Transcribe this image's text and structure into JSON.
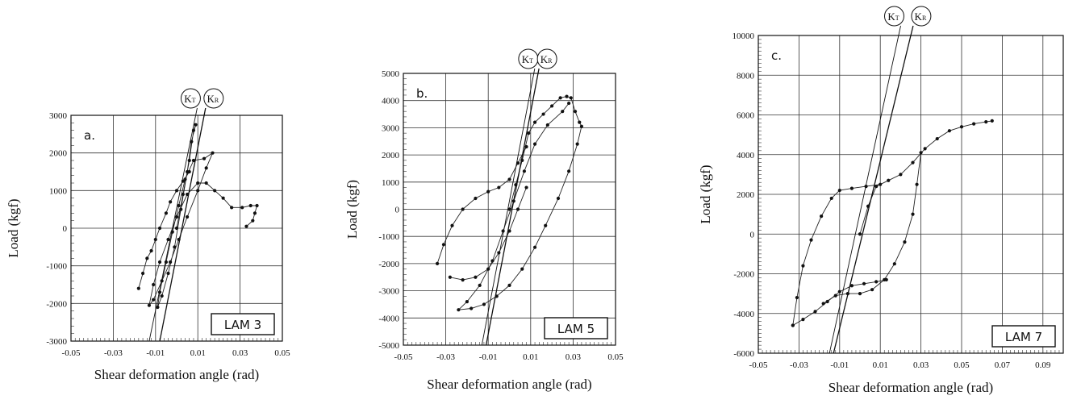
{
  "chart_data": [
    {
      "type": "scatter",
      "panel_label": "a.",
      "specimen": "LAM 3",
      "xlabel": "Shear deformation angle (rad)",
      "ylabel": "Load (kgf)",
      "xlim": [
        -0.05,
        0.05
      ],
      "ylim": [
        -3000,
        3000
      ],
      "xticks": [
        "-0.05",
        "-0.03",
        "-0.01",
        "0.01",
        "0.03",
        "0.05"
      ],
      "yticks": [
        "-3000",
        "-2000",
        "-1000",
        "0",
        "1000",
        "2000",
        "3000"
      ],
      "grid": true,
      "stiffness_labels": [
        {
          "main": "K",
          "sub": "T",
          "line": [
            [
              -0.013,
              -3000
            ],
            [
              0.009,
              3000
            ]
          ]
        },
        {
          "main": "K",
          "sub": "R",
          "line": [
            [
              -0.008,
              -3000
            ],
            [
              0.013,
              3000
            ]
          ]
        }
      ],
      "series": [
        {
          "points": [
            [
              0.0,
              0
            ],
            [
              0.003,
              900
            ],
            [
              0.006,
              1800
            ],
            [
              0.008,
              2600
            ],
            [
              0.009,
              2750
            ],
            [
              0.007,
              2300
            ],
            [
              0.005,
              1500
            ],
            [
              0.002,
              500
            ],
            [
              -0.001,
              -500
            ],
            [
              -0.004,
              -1200
            ],
            [
              -0.007,
              -1800
            ],
            [
              -0.009,
              -2100
            ],
            [
              -0.008,
              -1700
            ],
            [
              -0.005,
              -900
            ],
            [
              -0.002,
              -100
            ],
            [
              0.001,
              600
            ],
            [
              0.004,
              1300
            ],
            [
              0.008,
              1800
            ],
            [
              0.013,
              1850
            ],
            [
              0.017,
              2000
            ],
            [
              0.014,
              1600
            ],
            [
              0.01,
              1000
            ],
            [
              0.005,
              300
            ],
            [
              0.001,
              -300
            ],
            [
              -0.003,
              -900
            ],
            [
              -0.007,
              -1400
            ],
            [
              -0.011,
              -1900
            ],
            [
              -0.013,
              -2050
            ],
            [
              -0.011,
              -1500
            ],
            [
              -0.008,
              -900
            ],
            [
              -0.004,
              -300
            ],
            [
              0.0,
              300
            ],
            [
              0.005,
              900
            ],
            [
              0.01,
              1200
            ],
            [
              0.014,
              1200
            ],
            [
              0.018,
              1000
            ],
            [
              0.022,
              800
            ],
            [
              0.026,
              550
            ],
            [
              0.031,
              550
            ],
            [
              0.035,
              600
            ],
            [
              0.038,
              600
            ],
            [
              0.037,
              400
            ],
            [
              0.036,
              200
            ],
            [
              0.033,
              50
            ]
          ]
        },
        {
          "points": [
            [
              -0.018,
              -1600
            ],
            [
              -0.016,
              -1200
            ],
            [
              -0.014,
              -800
            ],
            [
              -0.012,
              -600
            ],
            [
              -0.01,
              -300
            ],
            [
              -0.008,
              0
            ],
            [
              -0.005,
              400
            ],
            [
              -0.003,
              700
            ],
            [
              0.0,
              1000
            ],
            [
              0.003,
              1250
            ],
            [
              0.006,
              1500
            ]
          ]
        }
      ]
    },
    {
      "type": "scatter",
      "panel_label": "b.",
      "specimen": "LAM 5",
      "xlabel": "Shear deformation angle (rad)",
      "ylabel": "Load (kgf)",
      "xlim": [
        -0.05,
        0.05
      ],
      "ylim": [
        -5000,
        5000
      ],
      "xticks": [
        "-0.05",
        "-0.03",
        "-0.01",
        "0.01",
        "0.03",
        "0.05"
      ],
      "yticks": [
        "-5000",
        "-4000",
        "-3000",
        "-2000",
        "-1000",
        "0",
        "1000",
        "2000",
        "3000",
        "4000",
        "5000"
      ],
      "grid": true,
      "stiffness_labels": [
        {
          "main": "K",
          "sub": "T",
          "line": [
            [
              -0.013,
              -5000
            ],
            [
              0.011,
              4800
            ]
          ]
        },
        {
          "main": "K",
          "sub": "R",
          "line": [
            [
              -0.011,
              -5000
            ],
            [
              0.013,
              4800
            ]
          ]
        }
      ],
      "series": [
        {
          "points": [
            [
              0.0,
              0
            ],
            [
              0.003,
              900
            ],
            [
              0.006,
              1800
            ],
            [
              0.009,
              2800
            ],
            [
              0.012,
              3200
            ],
            [
              0.016,
              3500
            ],
            [
              0.02,
              3800
            ],
            [
              0.024,
              4100
            ],
            [
              0.027,
              4150
            ],
            [
              0.029,
              4100
            ],
            [
              0.031,
              3600
            ],
            [
              0.033,
              3200
            ],
            [
              0.034,
              3050
            ],
            [
              0.032,
              2400
            ],
            [
              0.028,
              1400
            ],
            [
              0.023,
              400
            ],
            [
              0.017,
              -600
            ],
            [
              0.012,
              -1400
            ],
            [
              0.006,
              -2200
            ],
            [
              0.0,
              -2800
            ],
            [
              -0.006,
              -3200
            ],
            [
              -0.012,
              -3500
            ],
            [
              -0.018,
              -3650
            ],
            [
              -0.024,
              -3700
            ],
            [
              -0.02,
              -3400
            ],
            [
              -0.014,
              -2800
            ],
            [
              -0.008,
              -1900
            ],
            [
              -0.003,
              -800
            ],
            [
              0.002,
              300
            ],
            [
              0.007,
              1400
            ],
            [
              0.012,
              2400
            ],
            [
              0.018,
              3100
            ],
            [
              0.025,
              3600
            ],
            [
              0.028,
              3900
            ]
          ]
        },
        {
          "points": [
            [
              -0.034,
              -2000
            ],
            [
              -0.031,
              -1300
            ],
            [
              -0.027,
              -600
            ],
            [
              -0.022,
              0
            ],
            [
              -0.016,
              400
            ],
            [
              -0.01,
              650
            ],
            [
              -0.005,
              800
            ],
            [
              0.0,
              1100
            ],
            [
              0.004,
              1700
            ],
            [
              0.008,
              2300
            ]
          ]
        },
        {
          "points": [
            [
              -0.028,
              -2500
            ],
            [
              -0.022,
              -2600
            ],
            [
              -0.016,
              -2500
            ],
            [
              -0.01,
              -2200
            ],
            [
              -0.005,
              -1600
            ],
            [
              0.0,
              -800
            ],
            [
              0.004,
              0
            ],
            [
              0.008,
              800
            ]
          ]
        }
      ]
    },
    {
      "type": "scatter",
      "panel_label": "c.",
      "specimen": "LAM 7",
      "xlabel": "Shear deformation angle (rad)",
      "ylabel": "Load (kgf)",
      "xlim": [
        -0.05,
        0.1
      ],
      "ylim": [
        -6000,
        10000
      ],
      "xticks": [
        "-0.05",
        "-0.03",
        "-0.01",
        "0.01",
        "0.03",
        "0.05",
        "0.07",
        "0.09"
      ],
      "yticks": [
        "-6000",
        "-4000",
        "-2000",
        "0",
        "2000",
        "4000",
        "6000",
        "8000",
        "10000"
      ],
      "grid": true,
      "stiffness_labels": [
        {
          "main": "K",
          "sub": "T",
          "line": [
            [
              -0.015,
              -6000
            ],
            [
              0.019,
              10000
            ]
          ]
        },
        {
          "main": "K",
          "sub": "R",
          "line": [
            [
              -0.013,
              -6000
            ],
            [
              0.025,
              10000
            ]
          ]
        }
      ],
      "series": [
        {
          "points": [
            [
              0.0,
              0
            ],
            [
              0.004,
              1400
            ],
            [
              0.008,
              2400
            ],
            [
              0.014,
              2700
            ],
            [
              0.02,
              3000
            ],
            [
              0.026,
              3600
            ],
            [
              0.032,
              4300
            ],
            [
              0.038,
              4800
            ],
            [
              0.044,
              5200
            ],
            [
              0.05,
              5400
            ],
            [
              0.056,
              5550
            ],
            [
              0.062,
              5650
            ],
            [
              0.065,
              5700
            ]
          ]
        },
        {
          "points": [
            [
              -0.033,
              -4600
            ],
            [
              -0.028,
              -4300
            ],
            [
              -0.022,
              -3900
            ],
            [
              -0.016,
              -3400
            ],
            [
              -0.01,
              -2900
            ],
            [
              -0.004,
              -2600
            ],
            [
              0.002,
              -2500
            ],
            [
              0.008,
              -2400
            ],
            [
              0.013,
              -2300
            ]
          ]
        },
        {
          "points": [
            [
              -0.033,
              -4600
            ],
            [
              -0.031,
              -3200
            ],
            [
              -0.028,
              -1600
            ],
            [
              -0.024,
              -300
            ],
            [
              -0.019,
              900
            ],
            [
              -0.014,
              1800
            ],
            [
              -0.01,
              2200
            ],
            [
              -0.004,
              2300
            ],
            [
              0.003,
              2400
            ],
            [
              0.01,
              2500
            ]
          ]
        },
        {
          "points": [
            [
              0.03,
              4100
            ],
            [
              0.028,
              2500
            ],
            [
              0.026,
              1000
            ],
            [
              0.022,
              -400
            ],
            [
              0.017,
              -1500
            ],
            [
              0.012,
              -2300
            ],
            [
              0.006,
              -2800
            ],
            [
              0.0,
              -3000
            ],
            [
              -0.006,
              -3000
            ],
            [
              -0.012,
              -3100
            ],
            [
              -0.018,
              -3500
            ]
          ]
        }
      ]
    }
  ]
}
